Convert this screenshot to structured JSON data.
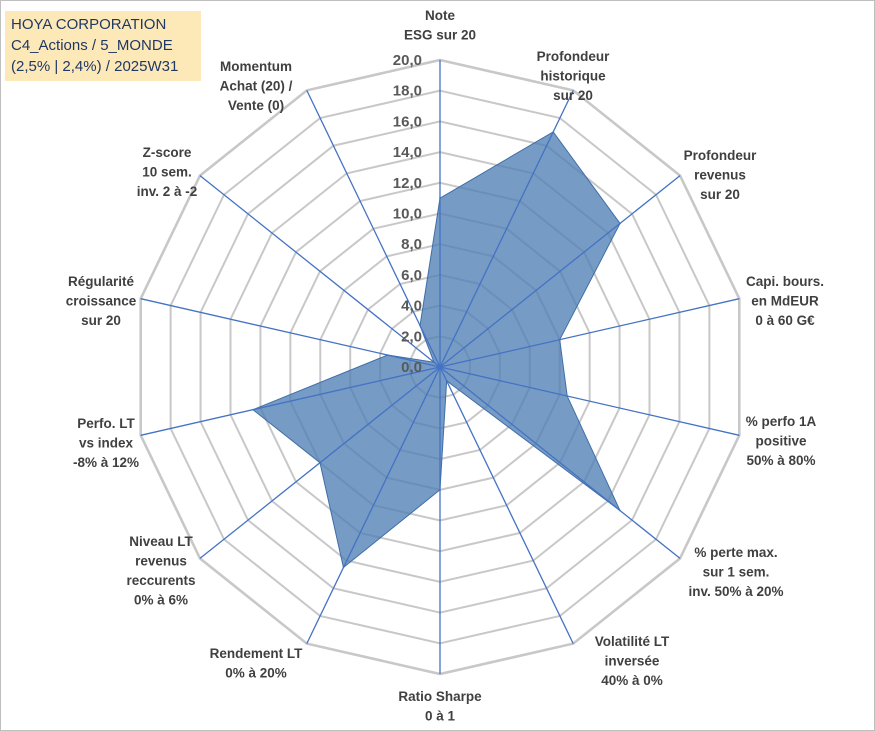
{
  "title_box": {
    "line1": "HOYA CORPORATION",
    "line2": "C4_Actions / 5_MONDE",
    "line3": "(2,5% | 2,4%) / 2025W31"
  },
  "colors": {
    "fill": "#4f7fb5",
    "spoke": "#4472c4",
    "grid": "#c8c8c8",
    "title_bg": "#fde9b8",
    "title_text": "#203864"
  },
  "chart_data": {
    "type": "radar",
    "rmin": 0,
    "rmax": 20,
    "ticks": [
      "0,0",
      "2,0",
      "4,0",
      "6,0",
      "8,0",
      "10,0",
      "12,0",
      "14,0",
      "16,0",
      "18,0",
      "20,0"
    ],
    "grid": true,
    "axes": [
      [
        "Note",
        "ESG sur 20"
      ],
      [
        "Profondeur",
        "historique",
        "sur 20"
      ],
      [
        "Profondeur",
        "revenus",
        "sur 20"
      ],
      [
        "Capi. bours.",
        "en MdEUR",
        "0 à 60 G€"
      ],
      [
        "% perfo 1A",
        "positive",
        "50% à 80%"
      ],
      [
        "% perte max.",
        "sur 1 sem.",
        "inv. 50% à 20%"
      ],
      [
        "Volatilité LT",
        "inversée",
        "40% à 0%"
      ],
      [
        "Ratio Sharpe",
        "0 à 1"
      ],
      [
        "Rendement LT",
        "0% à 20%"
      ],
      [
        "Niveau LT",
        "revenus",
        "reccurents",
        "0% à 6%"
      ],
      [
        "Perfo. LT",
        "vs index",
        "-8% à 12%"
      ],
      [
        "Régularité",
        "croissance",
        "sur 20"
      ],
      [
        "Z-score",
        "10 sem.",
        "inv. 2 à -2"
      ],
      [
        "Momentum",
        "Achat (20) /",
        "Vente (0)"
      ]
    ],
    "values": [
      11.0,
      17.0,
      15.0,
      8.0,
      8.5,
      15.0,
      1.0,
      8.0,
      14.5,
      10.0,
      12.5,
      3.5,
      0.5,
      3.0
    ]
  }
}
